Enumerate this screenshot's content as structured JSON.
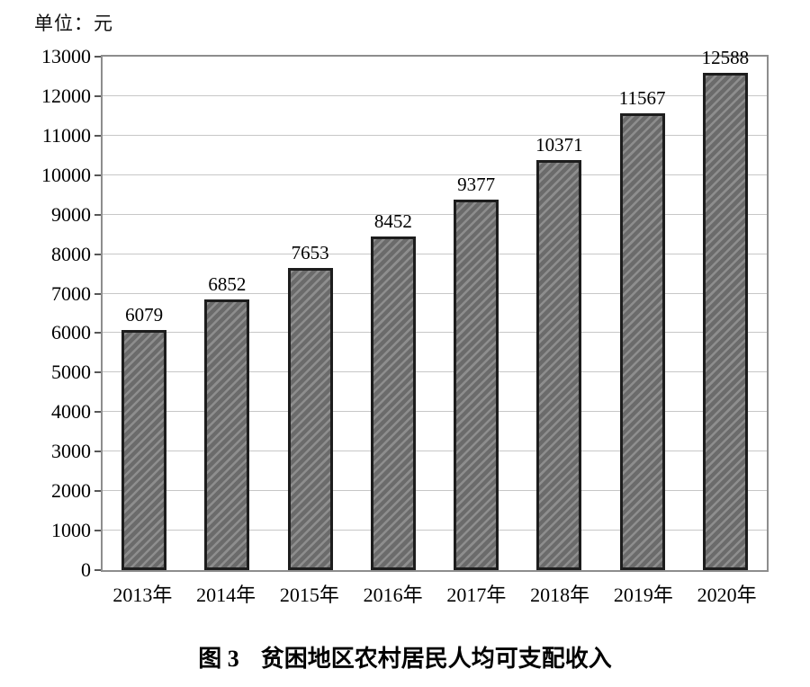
{
  "unit_label": "单位：元",
  "caption": {
    "label": "图 3",
    "text": "贫困地区农村居民人均可支配收入"
  },
  "chart_data": {
    "type": "bar",
    "title": "图 3 贫困地区农村居民人均可支配收入",
    "unit": "单位：元",
    "categories": [
      "2013年",
      "2014年",
      "2015年",
      "2016年",
      "2017年",
      "2018年",
      "2019年",
      "2020年"
    ],
    "values": [
      6079,
      6852,
      7653,
      8452,
      9377,
      10371,
      11567,
      12588
    ],
    "xlabel": "",
    "ylabel": "",
    "ylim": [
      0,
      13000
    ],
    "yticks": [
      0,
      1000,
      2000,
      3000,
      4000,
      5000,
      6000,
      7000,
      8000,
      9000,
      10000,
      11000,
      12000,
      13000
    ],
    "grid": true,
    "legend": "none",
    "colors": {
      "bar_fill": "#6b6b6b",
      "bar_hatch": "#8f8f8f",
      "bar_border": "#1d1d1d",
      "gridline": "#c7c7c7",
      "axis_border": "#8d8d8d",
      "tick": "#575757",
      "text": "#000000"
    }
  }
}
